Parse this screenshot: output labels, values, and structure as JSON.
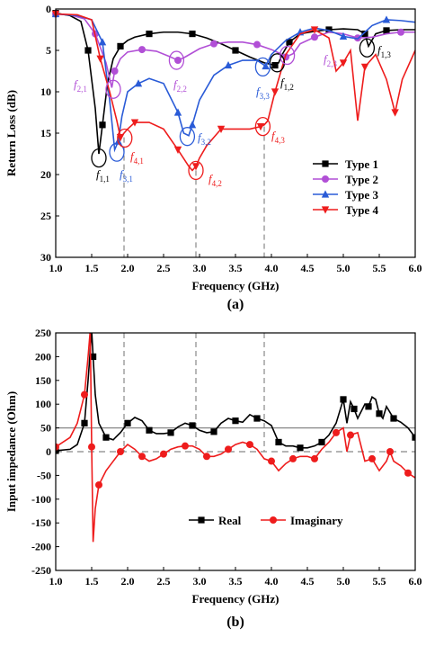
{
  "colors": {
    "type1": "#000000",
    "type2": "#b14fd6",
    "type3": "#2a5bd7",
    "type4": "#ee1c1c",
    "real": "#000000",
    "imaginary": "#ee1c1c",
    "guide": "#888888"
  },
  "chart_data": [
    {
      "type": "line",
      "panel_label": "(a)",
      "xlabel": "Frequency (GHz)",
      "ylabel": "Return Loss (dB)",
      "xlim": [
        1.0,
        6.0
      ],
      "ylim": [
        0,
        30
      ],
      "y_inverted": true,
      "x_ticks": [
        "1.0",
        "1.5",
        "2.0",
        "2.5",
        "3.0",
        "3.5",
        "4.0",
        "4.5",
        "5.0",
        "5.5",
        "6.0"
      ],
      "y_ticks": [
        "0",
        "5",
        "10",
        "15",
        "20",
        "25",
        "30"
      ],
      "legend_position": "right",
      "series": [
        {
          "name": "Type 1",
          "marker": "square",
          "color_key": "type1",
          "x": [
            1.0,
            1.2,
            1.35,
            1.45,
            1.55,
            1.6,
            1.65,
            1.72,
            1.8,
            1.9,
            2.0,
            2.1,
            2.3,
            2.5,
            2.7,
            2.9,
            3.1,
            3.3,
            3.5,
            3.7,
            3.9,
            4.05,
            4.1,
            4.15,
            4.25,
            4.4,
            4.6,
            4.8,
            5.0,
            5.2,
            5.3,
            5.35,
            5.45,
            5.6,
            5.8,
            6.0
          ],
          "y": [
            0.5,
            0.8,
            1.5,
            5,
            12,
            17.5,
            14,
            9,
            6,
            4.5,
            3.8,
            3.4,
            3,
            2.8,
            2.8,
            3,
            3.5,
            4.2,
            5,
            5.8,
            6.5,
            6.8,
            6.5,
            5.5,
            4,
            3,
            2.7,
            2.5,
            2.4,
            2.5,
            3,
            4.5,
            3,
            2.6,
            2.5,
            2.5
          ]
        },
        {
          "name": "Type 2",
          "marker": "circle",
          "color_key": "type2",
          "x": [
            1.0,
            1.2,
            1.4,
            1.55,
            1.7,
            1.78,
            1.82,
            1.9,
            2.0,
            2.2,
            2.4,
            2.6,
            2.7,
            2.8,
            3.0,
            3.2,
            3.4,
            3.6,
            3.8,
            4.0,
            4.1,
            4.2,
            4.3,
            4.4,
            4.6,
            4.8,
            5.0,
            5.2,
            5.4,
            5.6,
            5.8,
            6.0
          ],
          "y": [
            0.6,
            0.7,
            1.2,
            3,
            6.5,
            9.5,
            7.5,
            6,
            5.2,
            4.9,
            5.1,
            5.8,
            6.2,
            5.8,
            4.8,
            4.2,
            4,
            4,
            4.3,
            4.9,
            5.3,
            5.8,
            5.4,
            4.2,
            3.4,
            2.8,
            3,
            3.5,
            3.4,
            3,
            2.8,
            2.8
          ]
        },
        {
          "name": "Type 3",
          "marker": "triangle",
          "color_key": "type3",
          "x": [
            1.0,
            1.3,
            1.5,
            1.65,
            1.75,
            1.82,
            1.87,
            1.92,
            2.0,
            2.15,
            2.3,
            2.5,
            2.7,
            2.78,
            2.85,
            2.9,
            3.0,
            3.2,
            3.4,
            3.6,
            3.8,
            3.92,
            4.0,
            4.2,
            4.4,
            4.6,
            4.8,
            5.0,
            5.2,
            5.4,
            5.6,
            5.8,
            6.0
          ],
          "y": [
            0.6,
            0.8,
            1.3,
            4,
            11,
            17,
            16,
            13,
            10,
            9,
            8.4,
            9,
            12.5,
            15,
            15.3,
            14,
            11,
            8,
            6.8,
            6.2,
            6.2,
            6.9,
            5.5,
            3.8,
            2.8,
            2.3,
            2.6,
            3.3,
            3.6,
            2,
            1.3,
            1.4,
            1.6
          ]
        },
        {
          "name": "Type 4",
          "marker": "triangle-down",
          "color_key": "type4",
          "x": [
            1.0,
            1.3,
            1.5,
            1.62,
            1.75,
            1.85,
            1.9,
            1.95,
            2.0,
            2.1,
            2.3,
            2.5,
            2.7,
            2.85,
            2.9,
            2.95,
            3.0,
            3.1,
            3.3,
            3.5,
            3.7,
            3.85,
            3.9,
            3.95,
            4.05,
            4.2,
            4.4,
            4.6,
            4.8,
            4.9,
            5.0,
            5.1,
            5.2,
            5.3,
            5.45,
            5.6,
            5.72,
            5.82,
            6.0
          ],
          "y": [
            0.6,
            0.7,
            1.3,
            6,
            10,
            13.5,
            15.5,
            15,
            14.5,
            13.7,
            13.7,
            14.5,
            17,
            19,
            19.5,
            19,
            18,
            16.5,
            14.5,
            14.5,
            14.5,
            14.2,
            14,
            13.5,
            10,
            5.5,
            3,
            2.5,
            3.5,
            7.5,
            6.5,
            5,
            13.5,
            7,
            5.5,
            8.5,
            12.5,
            8.5,
            5
          ]
        }
      ],
      "annotations": [
        {
          "text": "f",
          "sub": "1,1",
          "color_key": "type1"
        },
        {
          "text": "f",
          "sub": "1,2",
          "color_key": "type1"
        },
        {
          "text": "f",
          "sub": "1,3",
          "color_key": "type1"
        },
        {
          "text": "f",
          "sub": "2,1",
          "color_key": "type2"
        },
        {
          "text": "f",
          "sub": "2,2",
          "color_key": "type2"
        },
        {
          "text": "f",
          "sub": "2,3",
          "color_key": "type2"
        },
        {
          "text": "f",
          "sub": "3,1",
          "color_key": "type3"
        },
        {
          "text": "f",
          "sub": "3,2",
          "color_key": "type3"
        },
        {
          "text": "f",
          "sub": "3,3",
          "color_key": "type3"
        },
        {
          "text": "f",
          "sub": "4,1",
          "color_key": "type4"
        },
        {
          "text": "f",
          "sub": "4,2",
          "color_key": "type4"
        },
        {
          "text": "f",
          "sub": "4,3",
          "color_key": "type4"
        }
      ]
    },
    {
      "type": "line",
      "panel_label": "(b)",
      "xlabel": "Frequency (GHz)",
      "ylabel": "Input impedance (Ohm)",
      "xlim": [
        1.0,
        6.0
      ],
      "ylim": [
        -250,
        250
      ],
      "x_ticks": [
        "1.0",
        "1.5",
        "2.0",
        "2.5",
        "3.0",
        "3.5",
        "4.0",
        "4.5",
        "5.0",
        "5.5",
        "6.0"
      ],
      "y_ticks": [
        "-250",
        "-200",
        "-150",
        "-100",
        "-50",
        "0",
        "50",
        "100",
        "150",
        "200",
        "250"
      ],
      "reference_lines": [
        50,
        0
      ],
      "legend_position": "lower-center",
      "series": [
        {
          "name": "Real",
          "marker": "square",
          "color_key": "real",
          "x": [
            1.0,
            1.2,
            1.3,
            1.4,
            1.45,
            1.5,
            1.52,
            1.55,
            1.6,
            1.7,
            1.8,
            1.9,
            2.0,
            2.1,
            2.2,
            2.3,
            2.4,
            2.5,
            2.6,
            2.7,
            2.8,
            2.9,
            3.0,
            3.1,
            3.2,
            3.3,
            3.4,
            3.5,
            3.6,
            3.7,
            3.8,
            3.9,
            4.0,
            4.1,
            4.2,
            4.3,
            4.4,
            4.5,
            4.6,
            4.7,
            4.8,
            4.9,
            5.0,
            5.05,
            5.1,
            5.15,
            5.2,
            5.3,
            5.35,
            5.4,
            5.45,
            5.5,
            5.55,
            5.6,
            5.7,
            5.8,
            5.9,
            6.0
          ],
          "y": [
            2,
            5,
            15,
            60,
            150,
            255,
            200,
            120,
            60,
            30,
            25,
            40,
            60,
            72,
            65,
            45,
            38,
            38,
            40,
            52,
            60,
            55,
            45,
            40,
            42,
            60,
            70,
            65,
            62,
            78,
            70,
            65,
            55,
            20,
            12,
            12,
            8,
            8,
            12,
            20,
            35,
            60,
            110,
            60,
            105,
            90,
            70,
            100,
            95,
            115,
            110,
            80,
            70,
            95,
            70,
            62,
            50,
            30
          ]
        },
        {
          "name": "Imaginary",
          "marker": "circle",
          "color_key": "imaginary",
          "x": [
            1.0,
            1.2,
            1.3,
            1.4,
            1.45,
            1.48,
            1.5,
            1.52,
            1.55,
            1.6,
            1.7,
            1.8,
            1.9,
            2.0,
            2.1,
            2.2,
            2.3,
            2.4,
            2.5,
            2.6,
            2.7,
            2.8,
            2.9,
            3.0,
            3.1,
            3.2,
            3.3,
            3.4,
            3.5,
            3.6,
            3.7,
            3.8,
            3.9,
            4.0,
            4.1,
            4.2,
            4.3,
            4.4,
            4.5,
            4.6,
            4.7,
            4.8,
            4.9,
            5.0,
            5.05,
            5.1,
            5.2,
            5.3,
            5.4,
            5.5,
            5.6,
            5.65,
            5.7,
            5.8,
            5.9,
            6.0
          ],
          "y": [
            10,
            30,
            60,
            120,
            200,
            255,
            10,
            -190,
            -120,
            -70,
            -40,
            -20,
            0,
            15,
            5,
            -10,
            -20,
            -15,
            -5,
            5,
            10,
            12,
            12,
            5,
            -10,
            -10,
            -5,
            5,
            15,
            20,
            15,
            5,
            -15,
            -20,
            -40,
            -25,
            -15,
            -10,
            -10,
            -15,
            5,
            20,
            40,
            50,
            0,
            35,
            40,
            -20,
            -15,
            -40,
            -20,
            0,
            -20,
            -30,
            -45,
            -55
          ]
        }
      ]
    }
  ]
}
